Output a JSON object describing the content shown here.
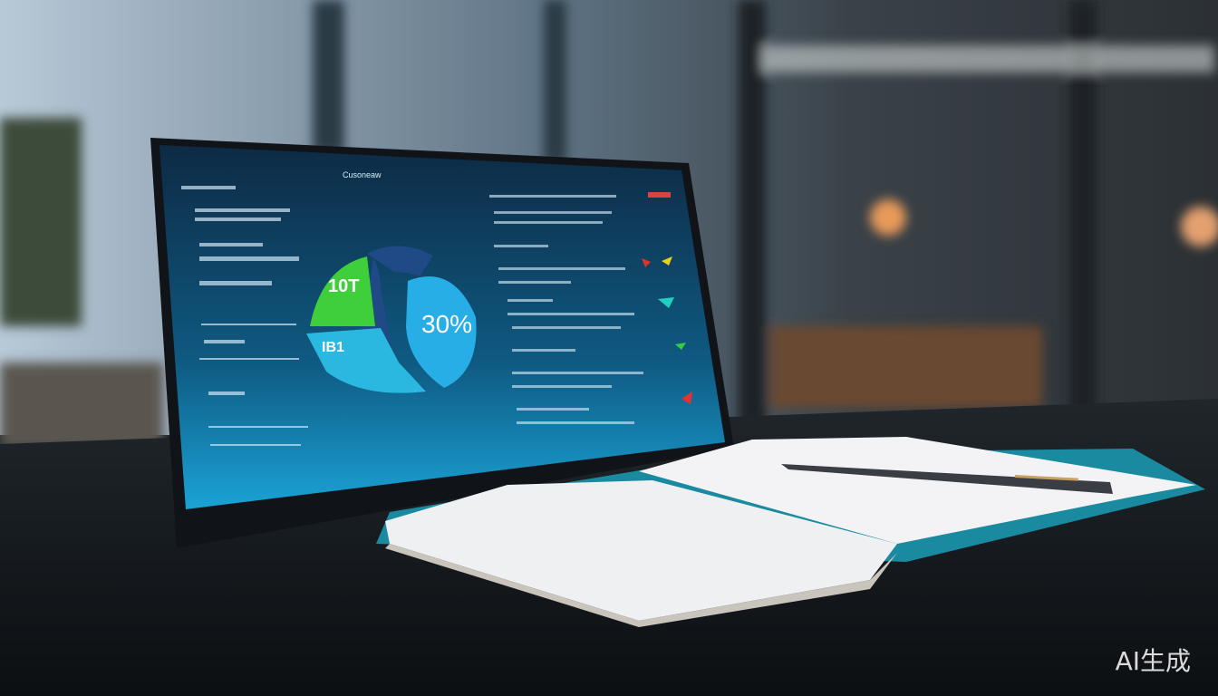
{
  "scene": {
    "description_free": true,
    "colors": {
      "sky": "#b9c9d6",
      "screen": "#0f4a6c",
      "green": "#3ecf3a",
      "light_blue": "#27aee6",
      "navy": "#1f4a86",
      "desk": "#15191d"
    }
  },
  "dashboard": {
    "title": "Cusoneaw",
    "pie_labels": {
      "green": "10T",
      "light_blue": "30%",
      "cyan": "IB1"
    }
  },
  "watermark": "AI生成"
}
